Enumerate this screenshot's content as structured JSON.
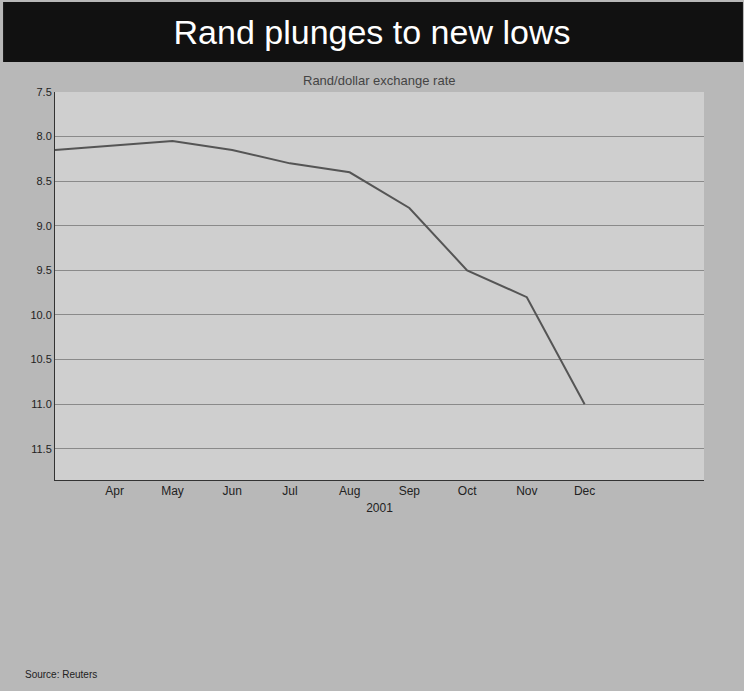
{
  "chart_data": {
    "type": "line",
    "title": "Rand plunges to new lows",
    "subtitle": "Rand/dollar exchange rate",
    "x_label": "2001",
    "source": "Source: Reuters",
    "x": [
      "2001-03",
      "2001-04",
      "2001-05",
      "2001-06",
      "2001-07",
      "2001-08",
      "2001-09",
      "2001-10",
      "2001-11",
      "2001-12"
    ],
    "series": [
      {
        "name": "Rand/dollar",
        "color": "#555555",
        "values": [
          8.15,
          8.1,
          8.05,
          8.15,
          8.3,
          8.4,
          8.8,
          9.5,
          9.8,
          11.0
        ]
      }
    ],
    "xlim": [
      "2001-03",
      "2002-02"
    ],
    "xticks": [
      {
        "value": "2001-04",
        "label": "Apr"
      },
      {
        "value": "2001-05",
        "label": "May"
      },
      {
        "value": "2001-06",
        "label": "Jun"
      },
      {
        "value": "2001-07",
        "label": "Jul"
      },
      {
        "value": "2001-08",
        "label": "Aug"
      },
      {
        "value": "2001-09",
        "label": "Sep"
      },
      {
        "value": "2001-10",
        "label": "Oct"
      },
      {
        "value": "2001-11",
        "label": "Nov"
      },
      {
        "value": "2001-12",
        "label": "Dec"
      }
    ],
    "ylim": [
      7.5,
      11.85
    ],
    "yticks": [
      7.5,
      {
        "value": 8,
        "label": "8.0"
      },
      8.5,
      {
        "value": 9,
        "label": "9.0"
      },
      9.5,
      {
        "value": 10,
        "label": "10.0"
      },
      10.5,
      {
        "value": 11,
        "label": "11.0"
      },
      11.5
    ],
    "grid": true
  }
}
